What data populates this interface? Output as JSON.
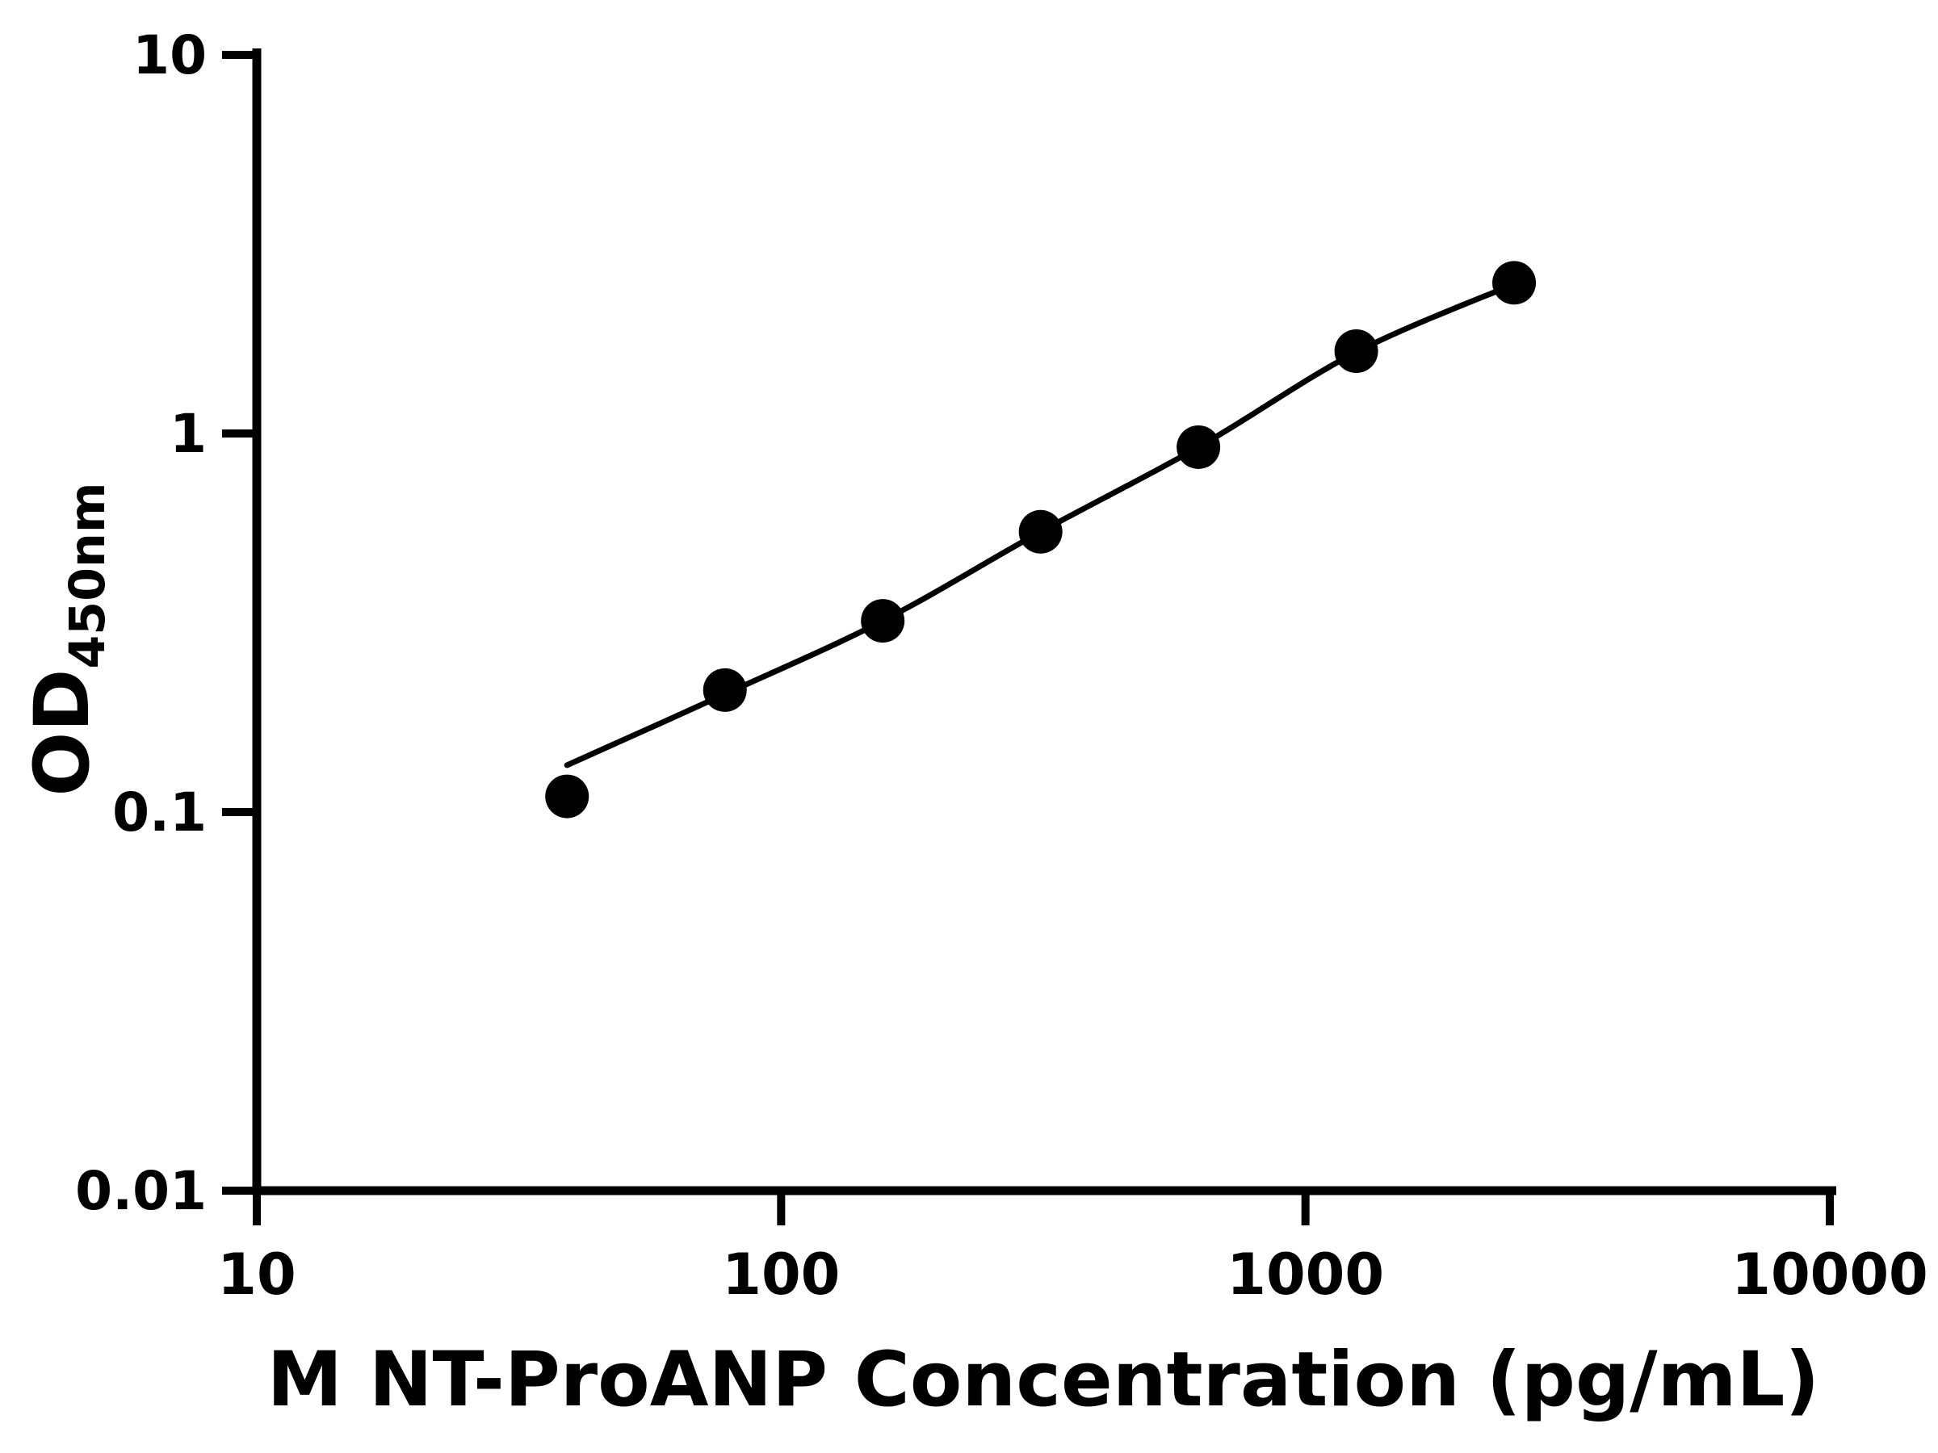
{
  "figure": {
    "background": "#ffffff"
  },
  "chart_data": {
    "type": "scatter",
    "title": "",
    "xlabel": "M NT-ProANP Concentration (pg/mL)",
    "ylabel": "OD450nm",
    "ylabel_base": "OD",
    "ylabel_sub": "450nm",
    "x_scale": "log10",
    "y_scale": "log10",
    "xlim": [
      10,
      10000
    ],
    "ylim": [
      0.01,
      10
    ],
    "x_ticks": [
      10,
      100,
      1000,
      10000
    ],
    "x_tick_labels": [
      "10",
      "100",
      "1000",
      "10000"
    ],
    "y_ticks": [
      0.01,
      0.1,
      1,
      10
    ],
    "y_tick_labels": [
      "0.01",
      "0.1",
      "1",
      "10"
    ],
    "grid": false,
    "legend": "none",
    "marker_shape": "filled-circle",
    "marker_color": "#000000",
    "line_color": "#000000",
    "axis_color": "#000000",
    "points": [
      {
        "x": 39.06,
        "y": 0.11
      },
      {
        "x": 78.13,
        "y": 0.21
      },
      {
        "x": 156.25,
        "y": 0.32
      },
      {
        "x": 312.5,
        "y": 0.55
      },
      {
        "x": 625,
        "y": 0.92
      },
      {
        "x": 1250,
        "y": 1.65
      },
      {
        "x": 2500,
        "y": 2.5
      }
    ],
    "curve": [
      {
        "x": 39.06,
        "y": 0.133
      },
      {
        "x": 78.13,
        "y": 0.205
      },
      {
        "x": 156.25,
        "y": 0.32
      },
      {
        "x": 312.5,
        "y": 0.55
      },
      {
        "x": 625,
        "y": 0.92
      },
      {
        "x": 1250,
        "y": 1.64
      },
      {
        "x": 2500,
        "y": 2.48
      }
    ]
  }
}
